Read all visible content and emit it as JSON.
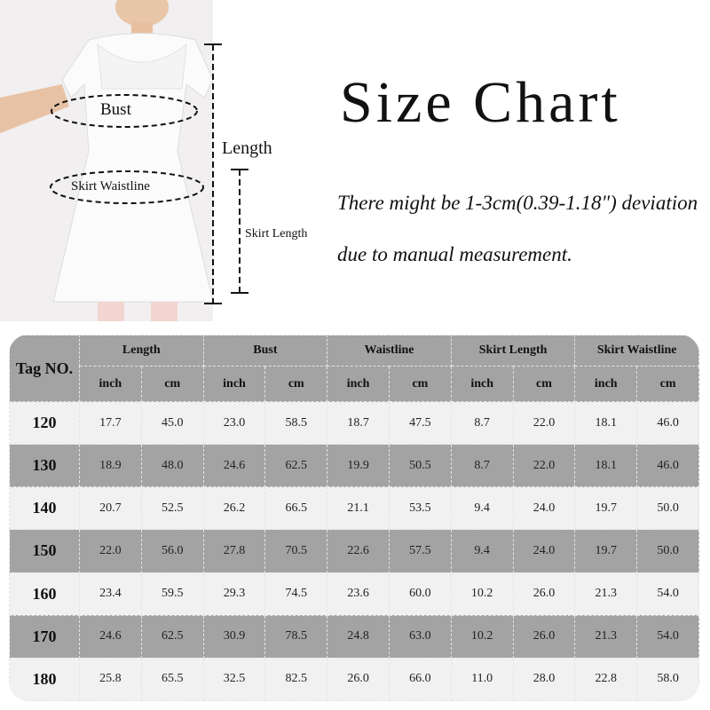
{
  "diagram": {
    "bust": "Bust",
    "length": "Length",
    "skirt_waistline": "Skirt Waistline",
    "skirt_length": "Skirt Length"
  },
  "title": "Size Chart",
  "note": "There might be 1-3cm(0.39-1.18\") deviation due to manual measurement.",
  "table": {
    "tag_header": "Tag NO.",
    "groups": [
      "Length",
      "Bust",
      "Waistline",
      "Skirt Length",
      "Skirt Waistline"
    ],
    "units": [
      "inch",
      "cm"
    ],
    "rows": [
      {
        "tag": "120",
        "values": [
          "17.7",
          "45.0",
          "23.0",
          "58.5",
          "18.7",
          "47.5",
          "8.7",
          "22.0",
          "18.1",
          "46.0"
        ]
      },
      {
        "tag": "130",
        "values": [
          "18.9",
          "48.0",
          "24.6",
          "62.5",
          "19.9",
          "50.5",
          "8.7",
          "22.0",
          "18.1",
          "46.0"
        ]
      },
      {
        "tag": "140",
        "values": [
          "20.7",
          "52.5",
          "26.2",
          "66.5",
          "21.1",
          "53.5",
          "9.4",
          "24.0",
          "19.7",
          "50.0"
        ]
      },
      {
        "tag": "150",
        "values": [
          "22.0",
          "56.0",
          "27.8",
          "70.5",
          "22.6",
          "57.5",
          "9.4",
          "24.0",
          "19.7",
          "50.0"
        ]
      },
      {
        "tag": "160",
        "values": [
          "23.4",
          "59.5",
          "29.3",
          "74.5",
          "23.6",
          "60.0",
          "10.2",
          "26.0",
          "21.3",
          "54.0"
        ]
      },
      {
        "tag": "170",
        "values": [
          "24.6",
          "62.5",
          "30.9",
          "78.5",
          "24.8",
          "63.0",
          "10.2",
          "26.0",
          "21.3",
          "54.0"
        ]
      },
      {
        "tag": "180",
        "values": [
          "25.8",
          "65.5",
          "32.5",
          "82.5",
          "26.0",
          "66.0",
          "11.0",
          "28.0",
          "22.8",
          "58.0"
        ]
      }
    ]
  }
}
